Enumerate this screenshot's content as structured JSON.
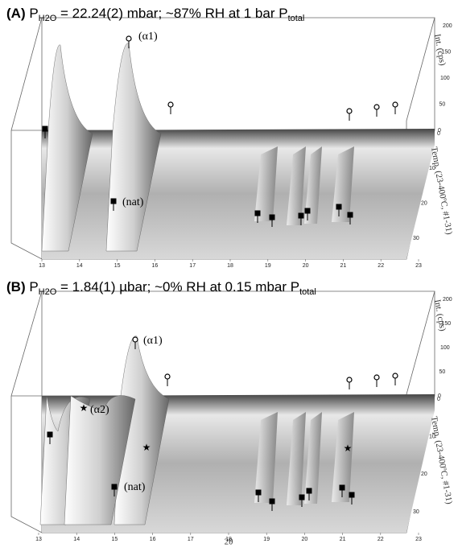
{
  "panels": [
    {
      "title_segments": [
        {
          "text": "(A) ",
          "style": "bold"
        },
        {
          "text": "P",
          "style": "normal"
        },
        {
          "text": "H2O",
          "style": "sub"
        },
        {
          "text": " = 22.24(2) mbar; ~87% RH at 1 bar P",
          "style": "normal"
        },
        {
          "text": "total",
          "style": "sub"
        }
      ],
      "annotations": [
        "(α1)",
        "(nat)"
      ],
      "x_ticks": [
        "13",
        "14",
        "15",
        "16",
        "17",
        "18",
        "19",
        "20",
        "21",
        "22",
        "23"
      ],
      "int_ticks": [
        "0",
        "50",
        "100",
        "150",
        "200"
      ],
      "temp_ticks": [
        "0",
        "10",
        "20",
        "30"
      ],
      "int_axis_label": "Int. (cps)",
      "temp_axis_label": "Temp. (23-400ºC, #1-31)"
    },
    {
      "title_segments": [
        {
          "text": "(B) ",
          "style": "bold"
        },
        {
          "text": "P",
          "style": "normal"
        },
        {
          "text": "H2O",
          "style": "sub"
        },
        {
          "text": " = 1.84(1) µbar; ~0% RH at 0.15 mbar P",
          "style": "normal"
        },
        {
          "text": "total",
          "style": "sub"
        }
      ],
      "annotations": [
        "(α1)",
        "(α2)",
        "(nat)"
      ],
      "x_ticks": [
        "13",
        "14",
        "15",
        "16",
        "17",
        "18",
        "19",
        "20",
        "21",
        "22",
        "23"
      ],
      "int_ticks": [
        "0",
        "50",
        "100",
        "150",
        "200"
      ],
      "temp_ticks": [
        "0",
        "10",
        "20",
        "30"
      ],
      "int_axis_label": "Int. (cps)",
      "temp_axis_label": "Temp. (23-400ºC, #1-31)"
    }
  ],
  "x_axis_label": "2θ"
}
